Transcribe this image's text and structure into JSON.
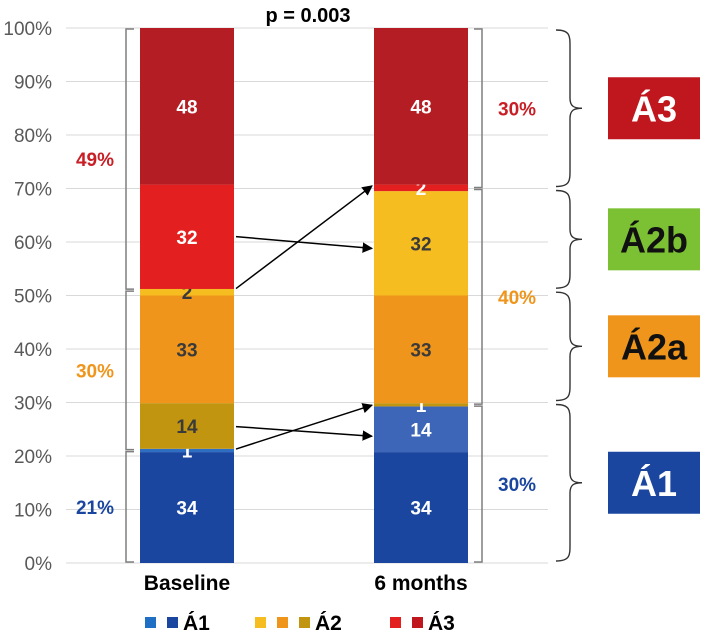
{
  "chart_data": {
    "type": "bar",
    "stacked": true,
    "title": "p = 0.003",
    "categories": [
      "Baseline",
      "6 months"
    ],
    "ylim": [
      0,
      100
    ],
    "yticks": [
      "0%",
      "10%",
      "20%",
      "30%",
      "40%",
      "50%",
      "60%",
      "70%",
      "80%",
      "90%",
      "100%"
    ],
    "bars": [
      {
        "name": "Baseline",
        "segments": [
          {
            "value": 34,
            "label": "34",
            "color": "#1b46a0",
            "text_color": "#ffffff"
          },
          {
            "value": 1,
            "label": "1",
            "color": "#2e6fc4",
            "text_color": "#ffffff"
          },
          {
            "value": 14,
            "label": "14",
            "color": "#c1950f",
            "text_color": "#3a3a3a"
          },
          {
            "value": 33,
            "label": "33",
            "color": "#f0951c",
            "text_color": "#3a3a3a"
          },
          {
            "value": 2,
            "label": "2",
            "color": "#f5bd1f",
            "text_color": "#3a3a3a"
          },
          {
            "value": 32,
            "label": "32",
            "color": "#e3201f",
            "text_color": "#ffffff"
          },
          {
            "value": 48,
            "label": "48",
            "color": "#b41d24",
            "text_color": "#ffffff"
          }
        ],
        "groups": [
          {
            "label": "21%",
            "color": "#1b46a0",
            "from": 0,
            "to": 21
          },
          {
            "label": "30%",
            "color": "#f0951c",
            "from": 21,
            "to": 51
          },
          {
            "label": "49%",
            "color": "#c81e25",
            "from": 51,
            "to": 100
          }
        ]
      },
      {
        "name": "6 months",
        "segments": [
          {
            "value": 34,
            "label": "34",
            "color": "#1b46a0",
            "text_color": "#ffffff"
          },
          {
            "value": 14,
            "label": "14",
            "color": "#3d66b8",
            "text_color": "#ffffff"
          },
          {
            "value": 1,
            "label": "1",
            "color": "#c1950f",
            "text_color": "#ffffff"
          },
          {
            "value": 33,
            "label": "33",
            "color": "#f0951c",
            "text_color": "#3a3a3a"
          },
          {
            "value": 32,
            "label": "32",
            "color": "#f5bd1f",
            "text_color": "#3a3a3a"
          },
          {
            "value": 2,
            "label": "2",
            "color": "#e3201f",
            "text_color": "#ffffff"
          },
          {
            "value": 48,
            "label": "48",
            "color": "#b41d24",
            "text_color": "#ffffff"
          }
        ],
        "groups": [
          {
            "label": "30%",
            "color": "#1b46a0",
            "from": 0,
            "to": 29.5
          },
          {
            "label": "40%",
            "color": "#f0951c",
            "from": 29.5,
            "to": 70
          },
          {
            "label": "30%",
            "color": "#c81e25",
            "from": 70,
            "to": 100
          }
        ]
      }
    ],
    "arrows": [
      {
        "from": {
          "bar": 0,
          "pct": 51.3
        },
        "to": {
          "bar": 1,
          "pct": 70.5
        }
      },
      {
        "from": {
          "bar": 0,
          "pct": 61
        },
        "to": {
          "bar": 1,
          "pct": 58.8
        }
      },
      {
        "from": {
          "bar": 0,
          "pct": 21.3
        },
        "to": {
          "bar": 1,
          "pct": 29.5
        }
      },
      {
        "from": {
          "bar": 0,
          "pct": 25.5
        },
        "to": {
          "bar": 1,
          "pct": 23.7
        }
      }
    ],
    "categories_right": [
      {
        "label": "Á3",
        "color": "#c0171f",
        "text_color": "#ffffff",
        "from": 70,
        "to": 100
      },
      {
        "label": "Á2b",
        "color": "#7cc133",
        "text_color": "#111111",
        "from": 51,
        "to": 70
      },
      {
        "label": "Á2a",
        "color": "#f0951c",
        "text_color": "#111111",
        "from": 30,
        "to": 51
      },
      {
        "label": "Á1",
        "color": "#1b46a0",
        "text_color": "#ffffff",
        "from": 0,
        "to": 30
      }
    ],
    "legend": [
      {
        "label": "Á1",
        "colors": [
          "#1f6fc4",
          "#1b46a0"
        ]
      },
      {
        "label": "Á2",
        "colors": [
          "#f5bd1f",
          "#f0951c",
          "#c1950f"
        ]
      },
      {
        "label": "Á3",
        "colors": [
          "#e3201f",
          "#c0171f"
        ]
      }
    ]
  }
}
